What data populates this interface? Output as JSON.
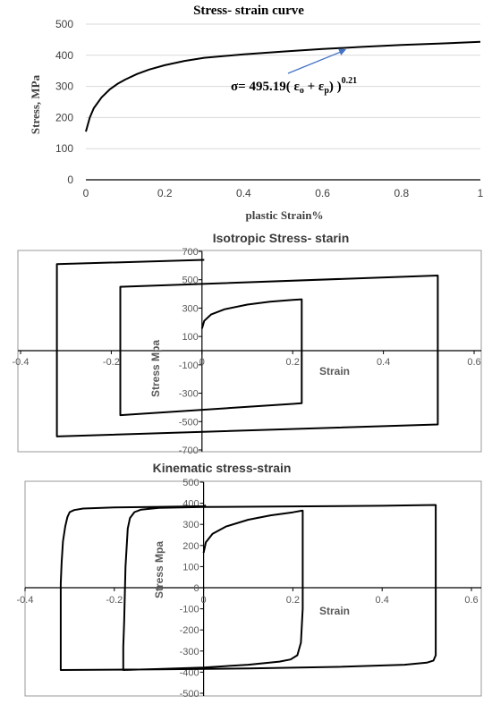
{
  "chart_data": [
    {
      "type": "line",
      "title": "Stress- strain curve",
      "xlabel": "plastic Strain%",
      "ylabel": "Stress, MPa",
      "xlim": [
        0,
        1
      ],
      "ylim": [
        0,
        500
      ],
      "xticks": [
        "0",
        "0.2",
        "0.4",
        "0.6",
        "0.8",
        "1"
      ],
      "yticks": [
        "0",
        "100",
        "200",
        "300",
        "400",
        "500"
      ],
      "grid": "horizontal",
      "annotation": {
        "prefix": "σ= 495.19(  ε",
        "sub1": "o",
        "mid": " + ε",
        "sub2": "p",
        "suffix": ") )",
        "exponent": "0.21",
        "arrow_to": [
          0.66,
          425
        ]
      },
      "series": [
        {
          "x": [
            0,
            0.01,
            0.02,
            0.04,
            0.06,
            0.08,
            0.1,
            0.13,
            0.16,
            0.2,
            0.25,
            0.3,
            0.4,
            0.5,
            0.6,
            0.7,
            0.8,
            0.9,
            1.0
          ],
          "y": [
            155,
            200,
            230,
            265,
            290,
            308,
            322,
            340,
            354,
            368,
            382,
            392,
            403,
            412,
            420,
            427,
            433,
            438,
            443
          ]
        }
      ]
    },
    {
      "type": "line",
      "title": "Isotropic Stress- starin",
      "xlabel": "Strain",
      "ylabel": "Stress Mpa",
      "xlim": [
        -0.4,
        0.6
      ],
      "ylim": [
        -700,
        700
      ],
      "xticks": [
        "-0.4",
        "-0.2",
        "0",
        "0.2",
        "0.4",
        "0.6"
      ],
      "yticks": [
        "-700",
        "-500",
        "-300",
        "-100",
        "100",
        "300",
        "500",
        "700"
      ],
      "series": [
        {
          "x": [
            0,
            0.005,
            0.02,
            0.05,
            0.1,
            0.15,
            0.2,
            0.22,
            0.22,
            0.2,
            -0.18,
            -0.18,
            0.52,
            0.52,
            -0.32,
            -0.32,
            0.005
          ],
          "y": [
            155,
            210,
            255,
            292,
            325,
            345,
            358,
            362,
            -370,
            -375,
            -455,
            450,
            530,
            -520,
            -605,
            610,
            640
          ]
        }
      ]
    },
    {
      "type": "line",
      "title": "Kinematic stress-strain",
      "xlabel": "Strain",
      "ylabel": "Stress Mpa",
      "xlim": [
        -0.4,
        0.6
      ],
      "ylim": [
        -500,
        500
      ],
      "xticks": [
        "-0.4",
        "-0.2",
        "0",
        "0.2",
        "0.4",
        "0.6"
      ],
      "yticks": [
        "-500",
        "-400",
        "-300",
        "-200",
        "-100",
        "0",
        "100",
        "200",
        "300",
        "400",
        "500"
      ],
      "series": [
        {
          "x": [
            0,
            0.005,
            0.02,
            0.05,
            0.1,
            0.15,
            0.2,
            0.22,
            0.222,
            0.222,
            0.218,
            0.21,
            0.195,
            0.17,
            0.1,
            0.0,
            -0.1,
            -0.18,
            -0.18,
            -0.178,
            -0.175,
            -0.17,
            -0.165,
            -0.155,
            -0.14,
            -0.1,
            0.0,
            0.2,
            0.4,
            0.52,
            0.52,
            0.518,
            0.515,
            0.5,
            0.45,
            0.3,
            0.1,
            -0.1,
            -0.32,
            -0.32,
            -0.318,
            -0.315,
            -0.31,
            -0.305,
            -0.3,
            -0.29,
            -0.27,
            -0.2,
            -0.1,
            0.0,
            0.005
          ],
          "y": [
            165,
            215,
            255,
            290,
            322,
            343,
            357,
            365,
            365,
            -100,
            -260,
            -320,
            -340,
            -350,
            -365,
            -378,
            -385,
            -390,
            -280,
            -160,
            100,
            280,
            330,
            358,
            370,
            378,
            382,
            385,
            388,
            392,
            -320,
            -330,
            -345,
            -355,
            -365,
            -375,
            -382,
            -387,
            -390,
            20,
            120,
            220,
            290,
            335,
            358,
            368,
            375,
            380,
            383,
            386,
            390
          ]
        }
      ]
    }
  ]
}
